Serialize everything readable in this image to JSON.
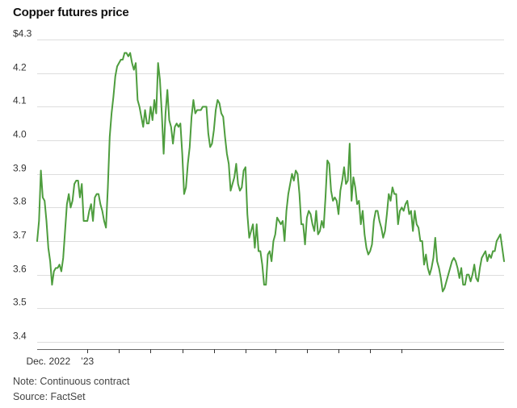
{
  "chart_data": {
    "type": "line",
    "title": "Copper futures price",
    "xlabel": "",
    "ylabel": "",
    "ylim": [
      3.4,
      4.3
    ],
    "y_ticks": [
      {
        "value": 4.3,
        "label": "$4.3"
      },
      {
        "value": 4.2,
        "label": "4.2"
      },
      {
        "value": 4.1,
        "label": "4.1"
      },
      {
        "value": 4.0,
        "label": "4.0"
      },
      {
        "value": 3.9,
        "label": "3.9"
      },
      {
        "value": 3.8,
        "label": "3.8"
      },
      {
        "value": 3.7,
        "label": "3.7"
      },
      {
        "value": 3.6,
        "label": "3.6"
      },
      {
        "value": 3.5,
        "label": "3.5"
      },
      {
        "value": 3.4,
        "label": "3.4"
      }
    ],
    "x_tick_labels": [
      {
        "label": "Dec. 2022",
        "index": 6
      },
      {
        "label": "’23",
        "index": 27
      }
    ],
    "x_tick_marks": [
      27,
      44,
      61,
      78,
      95,
      112,
      128,
      145,
      162,
      179,
      196
    ],
    "grid": true,
    "legend": "none",
    "series": [
      {
        "name": "Copper futures price",
        "color": "#4e9d3e",
        "values": [
          3.7,
          3.76,
          3.91,
          3.83,
          3.82,
          3.76,
          3.68,
          3.64,
          3.57,
          3.61,
          3.62,
          3.62,
          3.63,
          3.61,
          3.65,
          3.73,
          3.81,
          3.84,
          3.8,
          3.82,
          3.87,
          3.88,
          3.88,
          3.83,
          3.87,
          3.76,
          3.76,
          3.76,
          3.79,
          3.81,
          3.76,
          3.83,
          3.84,
          3.84,
          3.81,
          3.79,
          3.76,
          3.74,
          3.86,
          4.01,
          4.08,
          4.13,
          4.19,
          4.22,
          4.23,
          4.24,
          4.24,
          4.26,
          4.26,
          4.25,
          4.26,
          4.23,
          4.21,
          4.23,
          4.12,
          4.1,
          4.07,
          4.04,
          4.09,
          4.05,
          4.05,
          4.1,
          4.06,
          4.12,
          4.08,
          4.23,
          4.18,
          4.08,
          3.96,
          4.08,
          4.15,
          4.06,
          4.04,
          3.99,
          4.04,
          4.05,
          4.04,
          4.05,
          3.96,
          3.84,
          3.86,
          3.93,
          3.98,
          4.07,
          4.12,
          4.08,
          4.09,
          4.09,
          4.09,
          4.1,
          4.1,
          4.1,
          4.02,
          3.98,
          3.99,
          4.03,
          4.09,
          4.12,
          4.11,
          4.08,
          4.07,
          4.01,
          3.96,
          3.93,
          3.85,
          3.87,
          3.89,
          3.93,
          3.87,
          3.85,
          3.86,
          3.91,
          3.92,
          3.78,
          3.71,
          3.73,
          3.75,
          3.68,
          3.75,
          3.67,
          3.67,
          3.63,
          3.57,
          3.57,
          3.66,
          3.67,
          3.64,
          3.7,
          3.72,
          3.77,
          3.76,
          3.75,
          3.76,
          3.7,
          3.79,
          3.84,
          3.87,
          3.9,
          3.88,
          3.91,
          3.9,
          3.84,
          3.75,
          3.75,
          3.69,
          3.77,
          3.79,
          3.78,
          3.75,
          3.73,
          3.79,
          3.72,
          3.73,
          3.76,
          3.74,
          3.83,
          3.94,
          3.93,
          3.85,
          3.82,
          3.83,
          3.82,
          3.78,
          3.85,
          3.88,
          3.92,
          3.87,
          3.88,
          3.99,
          3.82,
          3.89,
          3.86,
          3.81,
          3.82,
          3.75,
          3.79,
          3.72,
          3.68,
          3.66,
          3.67,
          3.69,
          3.76,
          3.79,
          3.79,
          3.76,
          3.74,
          3.71,
          3.73,
          3.78,
          3.84,
          3.82,
          3.86,
          3.84,
          3.84,
          3.75,
          3.79,
          3.8,
          3.79,
          3.81,
          3.82,
          3.78,
          3.79,
          3.73,
          3.79,
          3.75,
          3.74,
          3.7,
          3.7,
          3.63,
          3.66,
          3.62,
          3.6,
          3.62,
          3.65,
          3.71,
          3.64,
          3.62,
          3.59,
          3.55,
          3.56,
          3.58,
          3.6,
          3.62,
          3.64,
          3.65,
          3.64,
          3.62,
          3.59,
          3.62,
          3.57,
          3.57,
          3.6,
          3.6,
          3.58,
          3.6,
          3.63,
          3.59,
          3.58,
          3.62,
          3.65,
          3.66,
          3.67,
          3.64,
          3.66,
          3.65,
          3.67,
          3.67,
          3.7,
          3.71,
          3.72,
          3.68,
          3.64
        ]
      }
    ]
  },
  "notes": {
    "note": "Note: Continuous contract",
    "source": "Source: FactSet"
  }
}
